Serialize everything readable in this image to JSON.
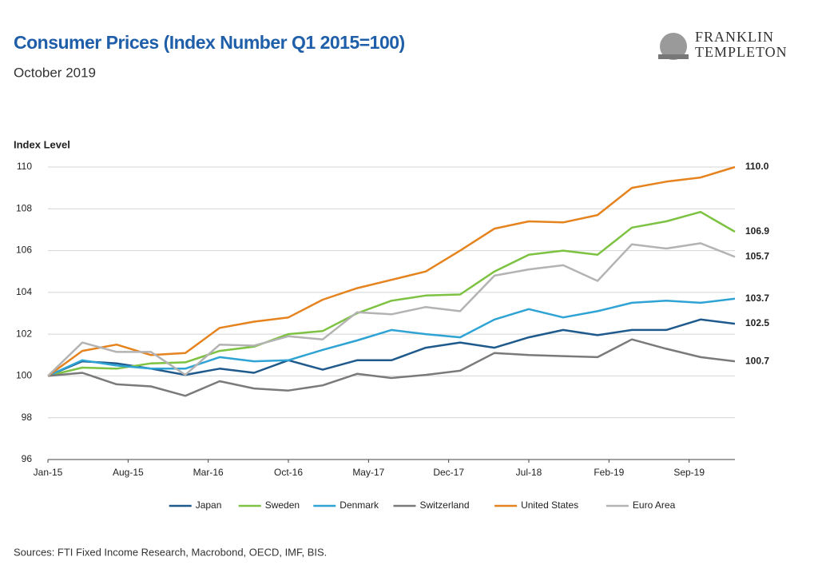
{
  "chart_data": {
    "type": "line",
    "title": "Consumer Prices (Index Number Q1 2015=100)",
    "subtitle": "October 2019",
    "y_label": "Index Level",
    "source": "Sources: FTI Fixed Income Research, Macrobond, OECD, IMF, BIS.",
    "logo": [
      "FRANKLIN",
      "TEMPLETON"
    ],
    "x": [
      0,
      3,
      6,
      9,
      12,
      15,
      18,
      21,
      24,
      27,
      30,
      33,
      36,
      39,
      42,
      45,
      48,
      51,
      54,
      57,
      60
    ],
    "xlim": [
      0,
      60
    ],
    "xticks": [
      {
        "value": 0,
        "label": "Jan-15"
      },
      {
        "value": 7,
        "label": "Aug-15"
      },
      {
        "value": 14,
        "label": "Mar-16"
      },
      {
        "value": 21,
        "label": "Oct-16"
      },
      {
        "value": 28,
        "label": "May-17"
      },
      {
        "value": 35,
        "label": "Dec-17"
      },
      {
        "value": 42,
        "label": "Jul-18"
      },
      {
        "value": 49,
        "label": "Feb-19"
      },
      {
        "value": 56,
        "label": "Sep-19"
      }
    ],
    "ylim": [
      96,
      110
    ],
    "yticks": [
      96,
      98,
      100,
      102,
      104,
      106,
      108,
      110
    ],
    "grid": true,
    "legend": "bottom",
    "series": [
      {
        "name": "Japan",
        "color": "#1f5a8c",
        "values": [
          100,
          100.7,
          100.6,
          100.35,
          100.05,
          100.35,
          100.15,
          100.75,
          100.3,
          100.75,
          100.75,
          101.35,
          101.6,
          101.35,
          101.85,
          102.2,
          101.95,
          102.2,
          102.2,
          102.7,
          102.5
        ],
        "value_labels": [
          null,
          null,
          null,
          null,
          null,
          null,
          null,
          null,
          null,
          null,
          null,
          null,
          null,
          null,
          null,
          null,
          null,
          null,
          null,
          null,
          "102.5"
        ]
      },
      {
        "name": "Sweden",
        "color": "#7dc242",
        "values": [
          100,
          100.4,
          100.35,
          100.6,
          100.65,
          101.2,
          101.4,
          102.0,
          102.15,
          103.0,
          103.6,
          103.85,
          103.9,
          105.0,
          105.8,
          106.0,
          105.8,
          107.1,
          107.4,
          107.85,
          106.9
        ],
        "value_labels": [
          null,
          null,
          null,
          null,
          null,
          null,
          null,
          null,
          null,
          null,
          null,
          null,
          null,
          null,
          null,
          null,
          null,
          null,
          null,
          null,
          "106.9"
        ]
      },
      {
        "name": "Denmark",
        "color": "#2ea3d4",
        "values": [
          100,
          100.75,
          100.5,
          100.35,
          100.35,
          100.9,
          100.7,
          100.75,
          101.25,
          101.7,
          102.2,
          102.0,
          101.85,
          102.7,
          103.2,
          102.8,
          103.1,
          103.5,
          103.6,
          103.5,
          103.7
        ],
        "value_labels": [
          null,
          null,
          null,
          null,
          null,
          null,
          null,
          null,
          null,
          null,
          null,
          null,
          null,
          null,
          null,
          null,
          null,
          null,
          null,
          null,
          "103.7"
        ]
      },
      {
        "name": "Switzerland",
        "color": "#7a7a7a",
        "values": [
          100,
          100.15,
          99.6,
          99.5,
          99.05,
          99.75,
          99.4,
          99.3,
          99.55,
          100.1,
          99.9,
          100.05,
          100.25,
          101.1,
          101.0,
          100.95,
          100.9,
          101.75,
          101.3,
          100.9,
          100.7
        ],
        "value_labels": [
          null,
          null,
          null,
          null,
          null,
          null,
          null,
          null,
          null,
          null,
          null,
          null,
          null,
          null,
          null,
          null,
          null,
          null,
          null,
          null,
          "100.7"
        ]
      },
      {
        "name": "United States",
        "color": "#e5831f",
        "values": [
          100,
          101.2,
          101.5,
          101.0,
          101.1,
          102.3,
          102.6,
          102.8,
          103.65,
          104.2,
          104.6,
          105.0,
          106.0,
          107.05,
          107.4,
          107.35,
          107.7,
          109.0,
          109.3,
          109.5,
          110.0
        ],
        "value_labels": [
          null,
          null,
          null,
          null,
          null,
          null,
          null,
          null,
          null,
          null,
          null,
          null,
          null,
          null,
          null,
          null,
          null,
          null,
          null,
          null,
          "110.0"
        ]
      },
      {
        "name": "Euro Area",
        "color": "#b3b3b3",
        "values": [
          100,
          101.6,
          101.15,
          101.15,
          100.05,
          101.5,
          101.45,
          101.9,
          101.75,
          103.05,
          102.95,
          103.3,
          103.1,
          104.8,
          105.1,
          105.3,
          104.55,
          106.3,
          106.1,
          106.35,
          105.7
        ],
        "value_labels": [
          null,
          null,
          null,
          null,
          null,
          null,
          null,
          null,
          null,
          null,
          null,
          null,
          null,
          null,
          null,
          null,
          null,
          null,
          null,
          null,
          "105.7"
        ]
      }
    ]
  }
}
